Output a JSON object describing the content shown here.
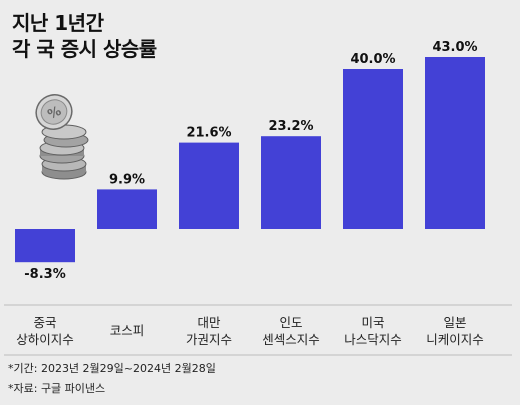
{
  "title": {
    "line1": "지난 1년간",
    "line2": "각 국 증시 상승률"
  },
  "chart_data": {
    "type": "bar",
    "categories": [
      [
        "중국",
        "상하이지수"
      ],
      [
        "코스피"
      ],
      [
        "대만",
        "가권지수"
      ],
      [
        "인도",
        "센섹스지수"
      ],
      [
        "미국",
        "나스닥지수"
      ],
      [
        "일본",
        "니케이지수"
      ]
    ],
    "values": [
      -8.3,
      9.9,
      21.6,
      23.2,
      40.0,
      43.0
    ],
    "data_labels": [
      "-8.3%",
      "9.9%",
      "21.6%",
      "23.2%",
      "40.0%",
      "43.0%"
    ],
    "ylim": [
      -10,
      45
    ],
    "bar_color": "#4341d6"
  },
  "footnotes": {
    "period": "*기간: 2023년 2월29일~2024년 2월28일",
    "source": "*자료: 구글 파이낸스"
  },
  "colors": {
    "background": "#ececec",
    "divider": "#bdbdbd"
  },
  "decoration": {
    "coin_icon": "coin-stack-icon"
  }
}
